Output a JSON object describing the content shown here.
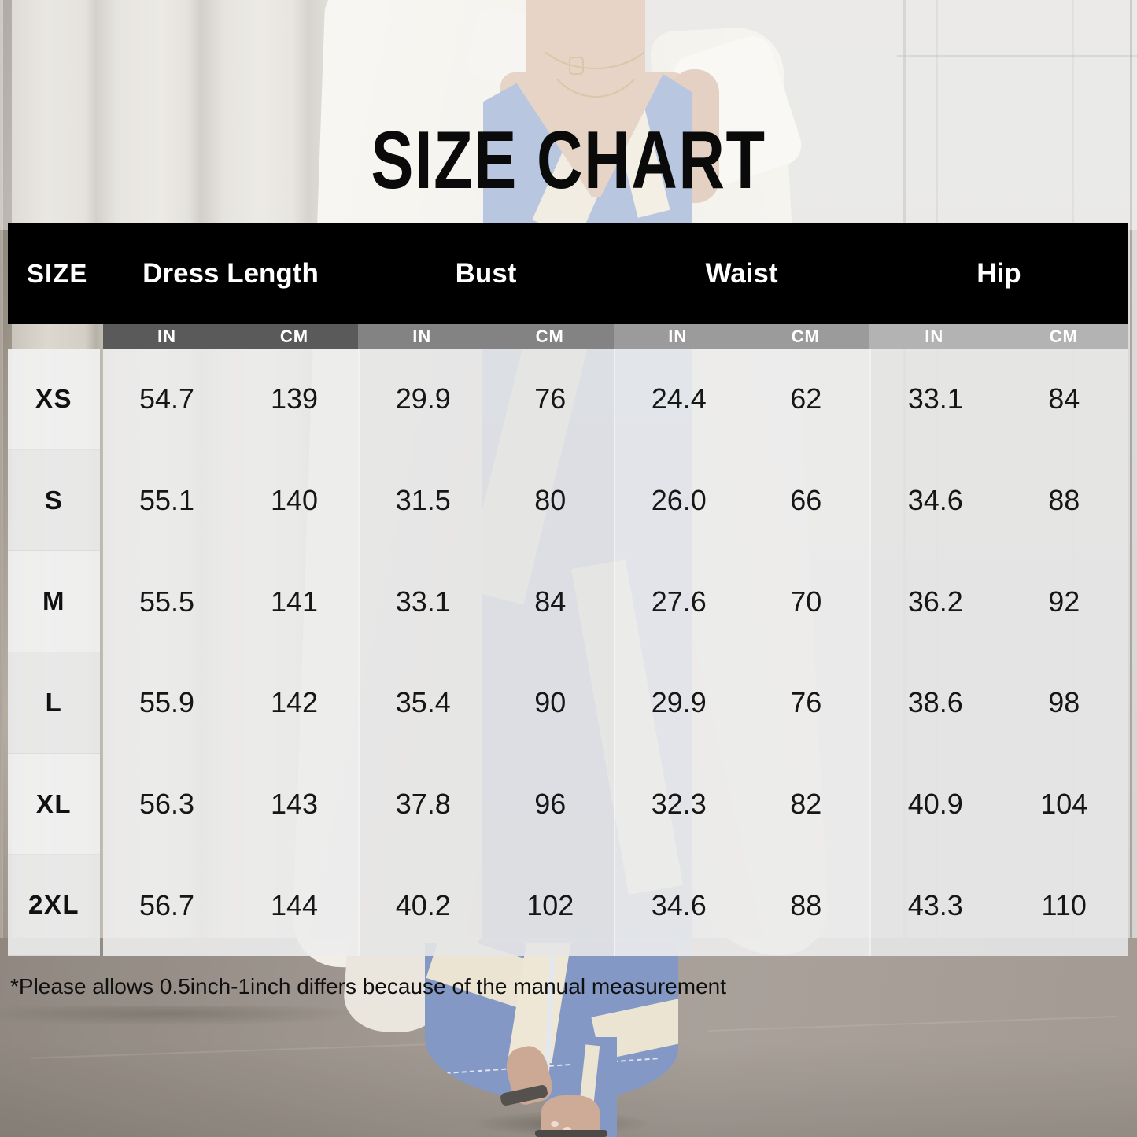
{
  "title": "SIZE CHART",
  "table": {
    "size_header": "SIZE",
    "groups": [
      {
        "label": "Dress Length",
        "units": [
          "IN",
          "CM"
        ]
      },
      {
        "label": "Bust",
        "units": [
          "IN",
          "CM"
        ]
      },
      {
        "label": "Waist",
        "units": [
          "IN",
          "CM"
        ]
      },
      {
        "label": "Hip",
        "units": [
          "IN",
          "CM"
        ]
      }
    ],
    "rows": [
      {
        "size": "XS",
        "dress_length": [
          "54.7",
          "139"
        ],
        "bust": [
          "29.9",
          "76"
        ],
        "waist": [
          "24.4",
          "62"
        ],
        "hip": [
          "33.1",
          "84"
        ]
      },
      {
        "size": "S",
        "dress_length": [
          "55.1",
          "140"
        ],
        "bust": [
          "31.5",
          "80"
        ],
        "waist": [
          "26.0",
          "66"
        ],
        "hip": [
          "34.6",
          "88"
        ]
      },
      {
        "size": "M",
        "dress_length": [
          "55.5",
          "141"
        ],
        "bust": [
          "33.1",
          "84"
        ],
        "waist": [
          "27.6",
          "70"
        ],
        "hip": [
          "36.2",
          "92"
        ]
      },
      {
        "size": "L",
        "dress_length": [
          "55.9",
          "142"
        ],
        "bust": [
          "35.4",
          "90"
        ],
        "waist": [
          "29.9",
          "76"
        ],
        "hip": [
          "38.6",
          "98"
        ]
      },
      {
        "size": "XL",
        "dress_length": [
          "56.3",
          "143"
        ],
        "bust": [
          "37.8",
          "96"
        ],
        "waist": [
          "32.3",
          "82"
        ],
        "hip": [
          "40.9",
          "104"
        ]
      },
      {
        "size": "2XL",
        "dress_length": [
          "56.7",
          "144"
        ],
        "bust": [
          "40.2",
          "102"
        ],
        "waist": [
          "34.6",
          "88"
        ],
        "hip": [
          "43.3",
          "110"
        ]
      }
    ]
  },
  "footnote": "*Please allows 0.5inch-1inch differs because of the manual measurement",
  "colors": {
    "header_bg": "#000000",
    "header_text": "#ffffff",
    "unit_bar_colors": [
      "#5a5a5a",
      "#838383",
      "#9b9b9b",
      "#b3b3b3"
    ],
    "dress_blue": "#7289bd",
    "dress_print_cream": "#e8e0cc",
    "coat_white": "#f0ede5",
    "floor_brown_gray": "#948b82",
    "panel_light_gray": "#ececec"
  },
  "chart_data": {
    "type": "table",
    "title": "SIZE CHART",
    "column_groups": [
      "Dress Length",
      "Bust",
      "Waist",
      "Hip"
    ],
    "units_per_group": [
      "IN",
      "CM"
    ],
    "columns": [
      "SIZE",
      "Dress Length IN",
      "Dress Length CM",
      "Bust IN",
      "Bust CM",
      "Waist IN",
      "Waist CM",
      "Hip IN",
      "Hip CM"
    ],
    "rows": [
      [
        "XS",
        "54.7",
        "139",
        "29.9",
        "76",
        "24.4",
        "62",
        "33.1",
        "84"
      ],
      [
        "S",
        "55.1",
        "140",
        "31.5",
        "80",
        "26.0",
        "66",
        "34.6",
        "88"
      ],
      [
        "M",
        "55.5",
        "141",
        "33.1",
        "84",
        "27.6",
        "70",
        "36.2",
        "92"
      ],
      [
        "L",
        "55.9",
        "142",
        "35.4",
        "90",
        "29.9",
        "76",
        "38.6",
        "98"
      ],
      [
        "XL",
        "56.3",
        "143",
        "37.8",
        "96",
        "32.3",
        "82",
        "40.9",
        "104"
      ],
      [
        "2XL",
        "56.7",
        "144",
        "40.2",
        "102",
        "34.6",
        "88",
        "43.3",
        "110"
      ]
    ],
    "footnote": "*Please allows 0.5inch-1inch differs because of the manual measurement"
  }
}
